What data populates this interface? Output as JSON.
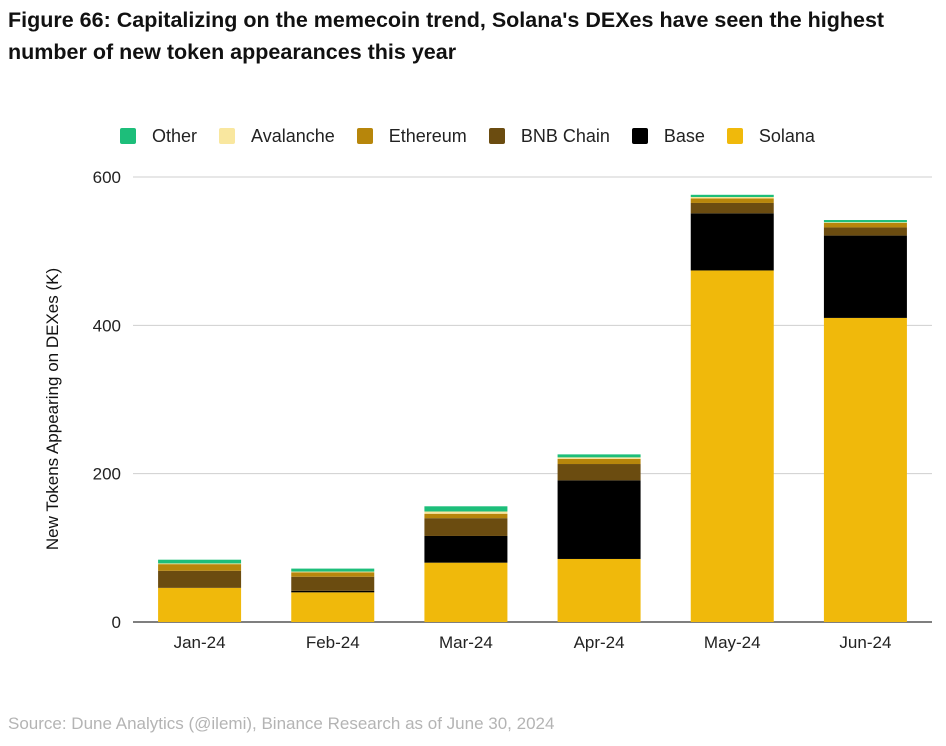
{
  "figure": {
    "title": "Figure 66: Capitalizing on the memecoin trend, Solana's DEXes have seen the highest number of new token appearances this year",
    "source": "Source: Dune Analytics (@ilemi), Binance Research as of June 30, 2024"
  },
  "chart_data": {
    "type": "bar",
    "stacked": true,
    "title": "Figure 66: Capitalizing on the memecoin trend, Solana's DEXes have seen the highest number of new token appearances this year",
    "xlabel": "",
    "ylabel": "New Tokens Appearing on DEXes (K)",
    "ylim": [
      0,
      600
    ],
    "yticks": [
      0,
      200,
      400,
      600
    ],
    "grid": true,
    "legend_position": "top",
    "categories": [
      "Jan-24",
      "Feb-24",
      "Mar-24",
      "Apr-24",
      "May-24",
      "Jun-24"
    ],
    "series": [
      {
        "name": "Solana",
        "color": "#F0B90B",
        "values": [
          46,
          40,
          80,
          85,
          474,
          410
        ]
      },
      {
        "name": "Base",
        "color": "#000000",
        "values": [
          0,
          2,
          36,
          106,
          77,
          111
        ]
      },
      {
        "name": "BNB Chain",
        "color": "#6B4C10",
        "values": [
          23,
          19,
          24,
          22,
          14,
          11
        ]
      },
      {
        "name": "Ethereum",
        "color": "#B7860B",
        "values": [
          9,
          6,
          6,
          7,
          6,
          6
        ]
      },
      {
        "name": "Avalanche",
        "color": "#F9E79F",
        "values": [
          1,
          1,
          3,
          2,
          2,
          1
        ]
      },
      {
        "name": "Other",
        "color": "#1DBE7A",
        "values": [
          5,
          4,
          7,
          4,
          3,
          3
        ]
      }
    ],
    "legend_order": [
      "Other",
      "Avalanche",
      "Ethereum",
      "BNB Chain",
      "Base",
      "Solana"
    ]
  }
}
